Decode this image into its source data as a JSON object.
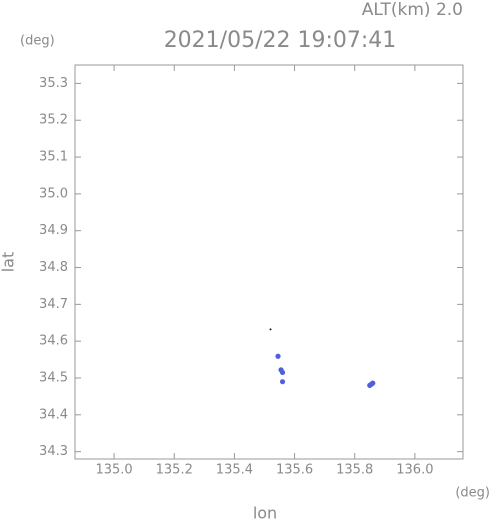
{
  "chart_data": {
    "type": "scatter",
    "title": "2021/05/22 19:07:41",
    "subtitle": "ALT(km) 2.0",
    "x_label": "lon",
    "y_label": "lat",
    "x_unit": "(deg)",
    "y_unit": "(deg)",
    "xlim": [
      134.87,
      136.16
    ],
    "ylim": [
      34.28,
      35.35
    ],
    "xticks": [
      {
        "value": 135.0,
        "label": "135.0"
      },
      135.2,
      135.4,
      135.6,
      135.8,
      {
        "value": 136.0,
        "label": "136.0"
      }
    ],
    "yticks": [
      34.3,
      34.4,
      34.5,
      34.6,
      34.7,
      34.8,
      34.9,
      {
        "value": 35.0,
        "label": "35.0"
      },
      35.1,
      35.2,
      35.3
    ],
    "series": [
      {
        "color": "#1a1a2e",
        "x": [
          135.52
        ],
        "y": [
          34.632
        ]
      },
      {
        "color": "#4f5fe0",
        "x": [
          135.545,
          135.555,
          135.56,
          135.56,
          135.85,
          135.86,
          135.855
        ],
        "y": [
          34.559,
          34.522,
          34.515,
          34.49,
          34.48,
          34.486,
          34.483
        ]
      }
    ]
  }
}
